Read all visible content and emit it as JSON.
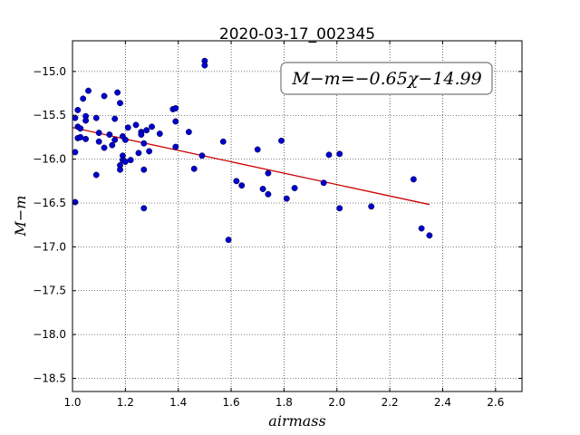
{
  "chart_data": {
    "type": "scatter",
    "title": "2020-03-17_002345",
    "xlabel": "airmass",
    "ylabel": "M−m",
    "xlim": [
      1.0,
      2.7
    ],
    "ylim": [
      -18.65,
      -14.65
    ],
    "y_inverted": true,
    "grid": true,
    "x_ticks": [
      1.0,
      1.2,
      1.4,
      1.6,
      1.8,
      2.0,
      2.2,
      2.4,
      2.6
    ],
    "x_tick_labels": [
      "1.0",
      "1.2",
      "1.4",
      "1.6",
      "1.8",
      "2.0",
      "2.2",
      "2.4",
      "2.6"
    ],
    "y_ticks": [
      -15.0,
      -15.5,
      -16.0,
      -16.5,
      -17.0,
      -17.5,
      -18.0,
      -18.5
    ],
    "y_tick_labels": [
      "−15.0",
      "−15.5",
      "−16.0",
      "−16.5",
      "−17.0",
      "−17.5",
      "−18.0",
      "−18.5"
    ],
    "annotation": "M−m=−0.65χ−14.99",
    "annotation_position": "top-right",
    "fit": {
      "slope": -0.65,
      "intercept": -14.99,
      "x_range": [
        1.0,
        2.35
      ],
      "color": "#cc0000"
    },
    "series": [
      {
        "color": "#0000cc",
        "points": [
          [
            1.01,
            -15.53
          ],
          [
            1.01,
            -15.92
          ],
          [
            1.01,
            -16.49
          ],
          [
            1.02,
            -15.44
          ],
          [
            1.02,
            -15.63
          ],
          [
            1.02,
            -15.76
          ],
          [
            1.03,
            -15.65
          ],
          [
            1.03,
            -15.75
          ],
          [
            1.04,
            -15.31
          ],
          [
            1.05,
            -15.51
          ],
          [
            1.05,
            -15.56
          ],
          [
            1.05,
            -15.77
          ],
          [
            1.06,
            -15.22
          ],
          [
            1.09,
            -15.53
          ],
          [
            1.09,
            -16.18
          ],
          [
            1.1,
            -15.7
          ],
          [
            1.1,
            -15.8
          ],
          [
            1.12,
            -15.28
          ],
          [
            1.12,
            -15.87
          ],
          [
            1.14,
            -15.72
          ],
          [
            1.15,
            -15.84
          ],
          [
            1.16,
            -15.54
          ],
          [
            1.16,
            -15.78
          ],
          [
            1.17,
            -15.24
          ],
          [
            1.18,
            -15.36
          ],
          [
            1.18,
            -16.07
          ],
          [
            1.18,
            -16.12
          ],
          [
            1.19,
            -15.74
          ],
          [
            1.19,
            -15.96
          ],
          [
            1.19,
            -16.01
          ],
          [
            1.2,
            -15.78
          ],
          [
            1.2,
            -16.03
          ],
          [
            1.21,
            -15.64
          ],
          [
            1.22,
            -16.01
          ],
          [
            1.24,
            -15.61
          ],
          [
            1.25,
            -15.93
          ],
          [
            1.26,
            -15.69
          ],
          [
            1.26,
            -15.72
          ],
          [
            1.27,
            -15.82
          ],
          [
            1.27,
            -16.12
          ],
          [
            1.27,
            -16.56
          ],
          [
            1.28,
            -15.67
          ],
          [
            1.29,
            -15.91
          ],
          [
            1.3,
            -15.63
          ],
          [
            1.33,
            -15.71
          ],
          [
            1.38,
            -15.43
          ],
          [
            1.39,
            -15.42
          ],
          [
            1.39,
            -15.57
          ],
          [
            1.39,
            -15.86
          ],
          [
            1.44,
            -15.69
          ],
          [
            1.46,
            -16.11
          ],
          [
            1.49,
            -15.96
          ],
          [
            1.5,
            -14.88
          ],
          [
            1.5,
            -14.93
          ],
          [
            1.57,
            -15.8
          ],
          [
            1.59,
            -16.92
          ],
          [
            1.62,
            -16.25
          ],
          [
            1.64,
            -16.3
          ],
          [
            1.7,
            -15.89
          ],
          [
            1.72,
            -16.34
          ],
          [
            1.74,
            -16.4
          ],
          [
            1.74,
            -16.16
          ],
          [
            1.79,
            -15.79
          ],
          [
            1.81,
            -16.45
          ],
          [
            1.84,
            -16.33
          ],
          [
            1.95,
            -16.27
          ],
          [
            1.97,
            -15.95
          ],
          [
            2.01,
            -16.56
          ],
          [
            2.01,
            -15.94
          ],
          [
            2.13,
            -16.54
          ],
          [
            2.29,
            -16.23
          ],
          [
            2.32,
            -16.79
          ],
          [
            2.35,
            -16.87
          ]
        ]
      }
    ]
  }
}
